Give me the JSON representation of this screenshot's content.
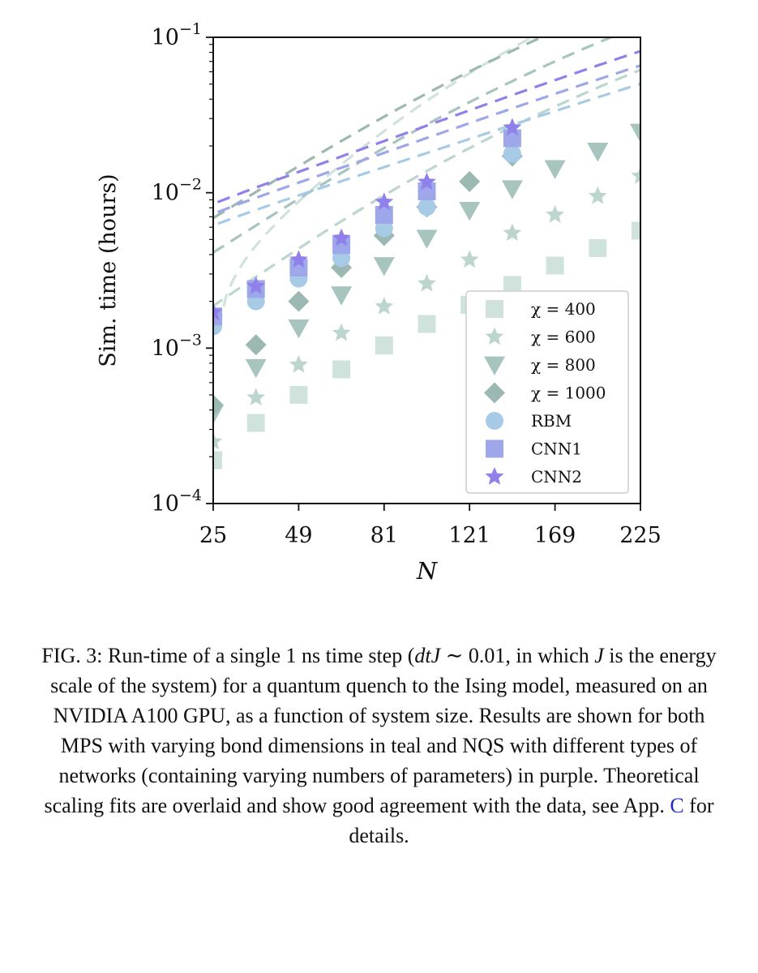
{
  "figure": {
    "legend_labels": [
      "χ = 400",
      "χ = 600",
      "χ = 800",
      "χ = 1000",
      "RBM",
      "CNN1",
      "CNN2"
    ]
  },
  "caption": {
    "label": "FIG. 3:",
    "part1": "Run-time of a single 1 ns time step (",
    "math1": "dtJ",
    "part2": " ∼ 0.01, in which ",
    "math2": "J",
    "part3": " is the energy scale of the system) for a quantum quench to the Ising model, measured on an NVIDIA A100 GPU, as a function of system size. Results are shown for both MPS with varying bond dimensions in teal and NQS with different types of networks (containing varying numbers of parameters) in purple. Theoretical scaling fits are overlaid and show good agreement with the data, see App. ",
    "ref": "C",
    "part4": " for details."
  },
  "chart_data": {
    "type": "scatter",
    "title": "",
    "xlabel": "N",
    "ylabel": "Sim. time (hours)",
    "xscale": "sqrt",
    "yscale": "log",
    "xlim": [
      25,
      225
    ],
    "ylim": [
      0.0001,
      0.1
    ],
    "xticks": [
      25,
      49,
      81,
      121,
      169,
      225
    ],
    "xtick_labels": [
      "25",
      "49",
      "81",
      "121",
      "169",
      "225"
    ],
    "yticks": [
      0.0001,
      0.001,
      0.01,
      0.1
    ],
    "ytick_labels": [
      {
        "base": "10",
        "exp": "−4"
      },
      {
        "base": "10",
        "exp": "−3"
      },
      {
        "base": "10",
        "exp": "−2"
      },
      {
        "base": "10",
        "exp": "−1"
      }
    ],
    "legend_position": "lower right",
    "series": [
      {
        "name": "χ = 400",
        "marker": "square",
        "color": "#cfe3dc",
        "size": 11,
        "x": [
          25,
          36,
          49,
          64,
          81,
          100,
          121,
          144,
          169,
          196,
          225
        ],
        "y": [
          0.00019,
          0.00033,
          0.0005,
          0.00073,
          0.00104,
          0.00143,
          0.0019,
          0.00255,
          0.0034,
          0.0044,
          0.0057
        ],
        "fit": {
          "a": 0.00119,
          "b": 5.1e-06,
          "ref": 25
        }
      },
      {
        "name": "χ = 600",
        "marker": "star",
        "color": "#bcd6cf",
        "size": 12,
        "x": [
          25,
          36,
          49,
          64,
          81,
          100,
          121,
          144,
          169,
          196,
          225
        ],
        "y": [
          0.00025,
          0.00048,
          0.00078,
          0.00125,
          0.00185,
          0.0026,
          0.0037,
          0.0055,
          0.0072,
          0.0095,
          0.0128
        ],
        "fit": {
          "a": 0.00023,
          "b": 1.15e-06,
          "ref": 0
        }
      },
      {
        "name": "χ = 800",
        "marker": "triangle-down",
        "color": "#a7c4bf",
        "size": 13,
        "x": [
          25,
          36,
          49,
          64,
          81,
          100,
          121,
          144,
          169,
          196,
          225
        ],
        "y": [
          0.00038,
          0.00075,
          0.00135,
          0.0022,
          0.0034,
          0.0051,
          0.0077,
          0.0106,
          0.0143,
          0.0185,
          0.0245
        ],
        "fit": {
          "a": 0.00055,
          "b": 2.2e-06,
          "ref": 0
        }
      },
      {
        "name": "χ = 1000",
        "marker": "diamond",
        "color": "#9bb8b3",
        "size": 13,
        "x": [
          25,
          36,
          49,
          64,
          81,
          100,
          121,
          144
        ],
        "y": [
          0.00043,
          0.00105,
          0.002,
          0.0033,
          0.0053,
          0.0081,
          0.0118,
          0.0172
        ],
        "fit": {
          "a": 0.00095,
          "b": 3.4e-06,
          "ref": 0
        }
      },
      {
        "name": "RBM",
        "marker": "circle",
        "color": "#a7cbe6",
        "size": 11,
        "x": [
          25,
          36,
          49,
          64,
          81,
          100,
          144
        ],
        "y": [
          0.00138,
          0.002,
          0.0028,
          0.0038,
          0.0059,
          0.0081,
          0.0178
        ],
        "fit": {
          "a": 0.00115,
          "b": 6.5e-07,
          "ref": 0
        }
      },
      {
        "name": "CNN1",
        "marker": "square",
        "color": "#9ea7ea",
        "size": 11,
        "x": [
          25,
          36,
          49,
          64,
          81,
          100,
          144
        ],
        "y": [
          0.0016,
          0.0024,
          0.0033,
          0.0046,
          0.0072,
          0.0102,
          0.0224
        ],
        "fit": {
          "a": 0.00135,
          "b": 9e-07,
          "ref": 0
        }
      },
      {
        "name": "CNN2",
        "marker": "star",
        "color": "#8f80ea",
        "size": 12,
        "x": [
          25,
          36,
          49,
          64,
          81,
          100,
          144
        ],
        "y": [
          0.0017,
          0.0025,
          0.0037,
          0.0051,
          0.0087,
          0.0117,
          0.0262
        ],
        "fit": {
          "a": 0.00155,
          "b": 1.15e-06,
          "ref": 0
        }
      }
    ]
  }
}
